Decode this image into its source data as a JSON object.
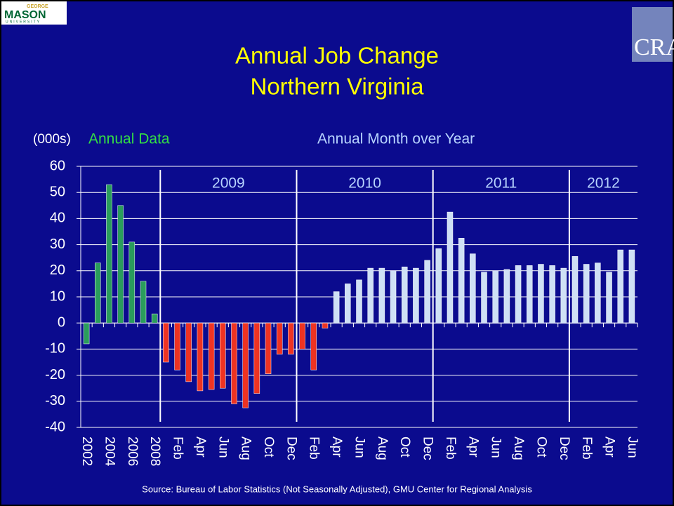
{
  "logos": {
    "left": {
      "top": "GEORGE",
      "main": "MASON",
      "bottom": "UNIVERSITY"
    },
    "right": "CRA"
  },
  "chart_data": {
    "type": "bar",
    "title": [
      "Annual Job Change",
      "Northern Virginia"
    ],
    "unit_label": "(000s)",
    "group_labels": [
      "Annual Data",
      "Annual Month over Year"
    ],
    "period_labels": [
      "2009",
      "2010",
      "2011",
      "2012"
    ],
    "source": "Source: Bureau of Labor Statistics (Not Seasonally Adjusted), GMU Center for Regional Analysis",
    "categories": [
      "2002",
      null,
      "2004",
      null,
      "2006",
      null,
      "2008",
      null,
      "Feb",
      null,
      "Apr",
      null,
      "Jun",
      null,
      "Aug",
      null,
      "Oct",
      null,
      "Dec",
      null,
      "Feb",
      null,
      "Apr",
      null,
      "Jun",
      null,
      "Aug",
      null,
      "Oct",
      null,
      "Dec",
      null,
      "Feb",
      null,
      "Apr",
      null,
      "Jun",
      null,
      "Aug",
      null,
      "Oct",
      null,
      "Dec",
      null,
      "Feb",
      null,
      "Apr",
      null,
      "Jun"
    ],
    "values": [
      -8,
      23,
      53,
      45,
      31,
      16,
      3.5,
      -15,
      -18,
      -22.5,
      -26,
      -25.5,
      -25,
      -31,
      -32.5,
      -27,
      -19.5,
      -12,
      -12,
      -10,
      -18,
      -2,
      12,
      15,
      16.5,
      21,
      21,
      20,
      21.5,
      21,
      24,
      28.5,
      42.5,
      32.5,
      26.5,
      19.5,
      20,
      20.5,
      22,
      22,
      22.5,
      22,
      21,
      25.5,
      22.5,
      23,
      19.5,
      28,
      28
    ],
    "colors": [
      "#2a9d5c",
      "#2a9d5c",
      "#2a9d5c",
      "#2a9d5c",
      "#2a9d5c",
      "#2a9d5c",
      "#2a9d5c",
      "#ee3322",
      "#ee3322",
      "#ee3322",
      "#ee3322",
      "#ee3322",
      "#ee3322",
      "#ee3322",
      "#ee3322",
      "#ee3322",
      "#ee3322",
      "#ee3322",
      "#ee3322",
      "#ee3322",
      "#ee3322",
      "#ee3322",
      "#cfe0f5",
      "#cfe0f5",
      "#cfe0f5",
      "#cfe0f5",
      "#cfe0f5",
      "#cfe0f5",
      "#cfe0f5",
      "#cfe0f5",
      "#cfe0f5",
      "#cfe0f5",
      "#cfe0f5",
      "#cfe0f5",
      "#cfe0f5",
      "#cfe0f5",
      "#cfe0f5",
      "#cfe0f5",
      "#cfe0f5",
      "#cfe0f5",
      "#cfe0f5",
      "#cfe0f5",
      "#cfe0f5",
      "#cfe0f5",
      "#cfe0f5",
      "#cfe0f5",
      "#cfe0f5",
      "#cfe0f5",
      "#cfe0f5"
    ],
    "ylim": [
      -40,
      60
    ],
    "yticks": [
      -40,
      -30,
      -20,
      -10,
      0,
      10,
      20,
      30,
      40,
      50,
      60
    ],
    "grid": true
  }
}
